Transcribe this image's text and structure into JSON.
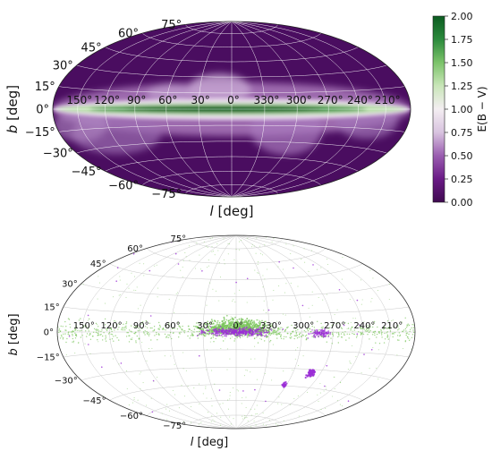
{
  "colors": {
    "cmap": [
      "#3f0a50",
      "#6a1a86",
      "#9a5db0",
      "#d8c3df",
      "#f4eef2",
      "#c9e6b9",
      "#7cc36a",
      "#2b8a3c",
      "#0b5b20"
    ],
    "map_bg": "#4a0d60",
    "point_green": "#79c55a",
    "point_purple": "#9b2fd6",
    "grid_top": "#ffffff",
    "grid_bottom": "#c8c8c8"
  },
  "chart_data": [
    {
      "type": "heatmap",
      "projection": "hammer-aitoff",
      "xlabel_l": "l",
      "xlabel_unit": "[deg]",
      "ylabel_b": "b",
      "ylabel_unit": "[deg]",
      "longitude_ticks": [
        "150°",
        "120°",
        "90°",
        "60°",
        "30°",
        "0°",
        "330°",
        "300°",
        "270°",
        "240°",
        "210°"
      ],
      "latitude_ticks": [
        "75°",
        "60°",
        "45°",
        "30°",
        "15°",
        "0°",
        "−15°",
        "−30°",
        "−45°",
        "−60°",
        "−75°"
      ],
      "colorbar": {
        "label": "E(B − V)",
        "min": 0.0,
        "max": 2.0,
        "ticks": [
          "0.00",
          "0.25",
          "0.50",
          "0.75",
          "1.00",
          "1.25",
          "1.50",
          "1.75",
          "2.00"
        ]
      },
      "grid": true
    },
    {
      "type": "scatter",
      "projection": "hammer-aitoff",
      "xlabel_l": "l",
      "xlabel_unit": "[deg]",
      "ylabel_b": "b",
      "ylabel_unit": "[deg]",
      "longitude_ticks": [
        "150°",
        "120°",
        "90°",
        "60°",
        "30°",
        "0°",
        "330°",
        "300°",
        "270°",
        "240°",
        "210°"
      ],
      "latitude_ticks": [
        "75°",
        "60°",
        "45°",
        "30°",
        "15°",
        "0°",
        "−15°",
        "−30°",
        "−45°",
        "−60°",
        "−75°"
      ],
      "grid": true
    }
  ]
}
